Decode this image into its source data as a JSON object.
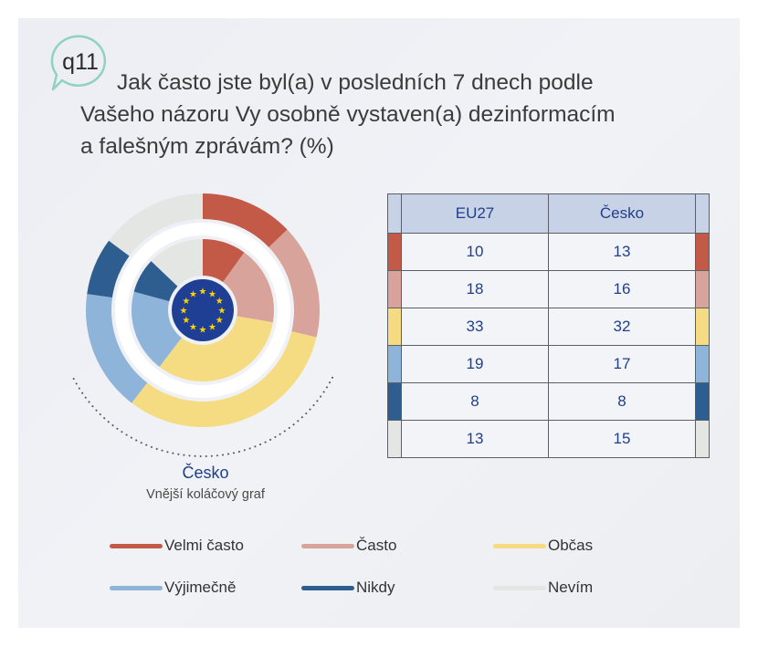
{
  "badge": "q11",
  "title_lines": [
    "Jak často jste byl(a) v posledních 7 dnech podle",
    "Vašeho názoru Vy osobně vystaven(a) dezinformacím",
    "a falešným zprávám? (%)"
  ],
  "center_label": "Česko",
  "center_sub": "Vnější koláčový graf",
  "colors": {
    "velmi_casto": "#c25a47",
    "casto": "#d8a39a",
    "obcas": "#f5dc82",
    "vyjimecne": "#8eb4d9",
    "nikdy": "#2e5d8f",
    "nevim": "#e4e6e4"
  },
  "chart_data": {
    "type": "pie",
    "variant": "double-donut",
    "inner_series": "EU27",
    "outer_series": "Česko",
    "categories": [
      "Velmi často",
      "Často",
      "Občas",
      "Výjimečně",
      "Nikdy",
      "Nevím"
    ],
    "series": [
      {
        "name": "EU27",
        "values": [
          10,
          18,
          33,
          19,
          8,
          13
        ]
      },
      {
        "name": "Česko",
        "values": [
          13,
          16,
          32,
          17,
          8,
          15
        ]
      }
    ]
  },
  "table": {
    "headers": [
      "EU27",
      "Česko"
    ],
    "rows": [
      {
        "eu": "10",
        "cz": "13",
        "color": "#c25a47"
      },
      {
        "eu": "18",
        "cz": "16",
        "color": "#d8a39a"
      },
      {
        "eu": "33",
        "cz": "32",
        "color": "#f5dc82"
      },
      {
        "eu": "19",
        "cz": "17",
        "color": "#8eb4d9"
      },
      {
        "eu": "8",
        "cz": "8",
        "color": "#2e5d8f"
      },
      {
        "eu": "13",
        "cz": "15",
        "color": "#e4e6e4"
      }
    ]
  },
  "legend": [
    {
      "label": "Velmi často",
      "color": "#c25a47"
    },
    {
      "label": "Často",
      "color": "#d8a39a"
    },
    {
      "label": "Občas",
      "color": "#f5dc82"
    },
    {
      "label": "Výjimečně",
      "color": "#8eb4d9"
    },
    {
      "label": "Nikdy",
      "color": "#2e5d8f"
    },
    {
      "label": "Nevím",
      "color": "#e4e6e4"
    }
  ]
}
